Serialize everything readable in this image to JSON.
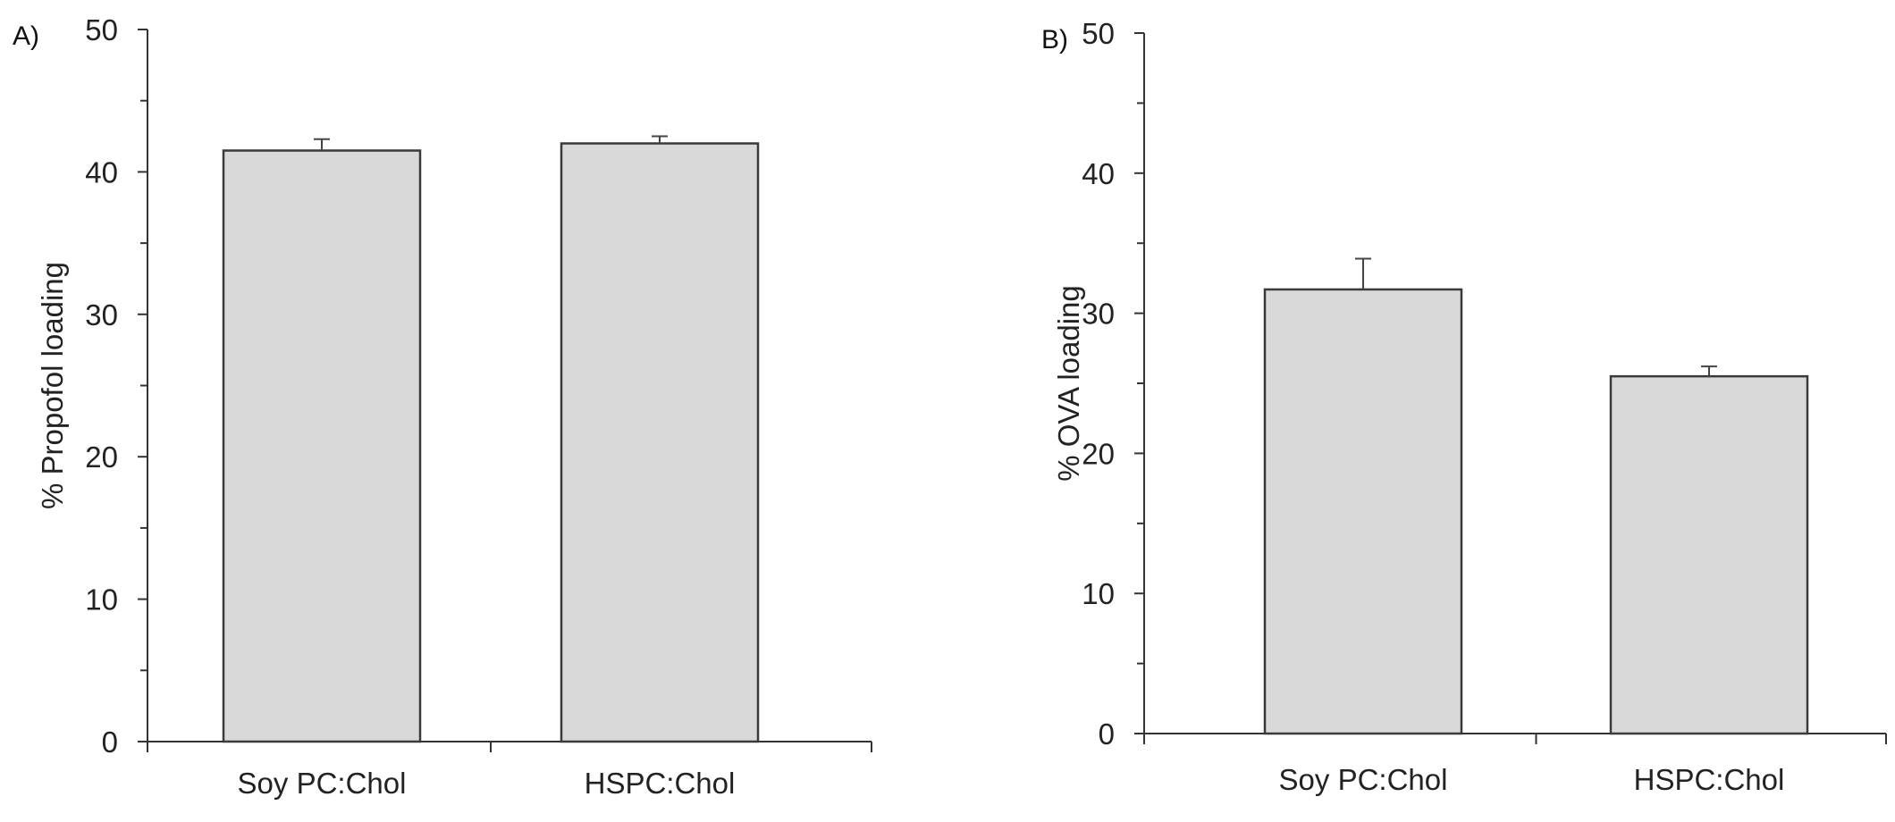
{
  "chart_data": [
    {
      "panel": "A)",
      "type": "bar",
      "categories": [
        "Soy PC:Chol",
        "HSPC:Chol"
      ],
      "values": [
        41.5,
        42.0
      ],
      "errors": [
        0.8,
        0.5
      ],
      "xlabel": "",
      "ylabel": "% Propofol loading",
      "ylim": [
        0,
        50
      ],
      "yticks": [
        0,
        10,
        20,
        30,
        40,
        50
      ],
      "bar_color": "#d9d9d9",
      "grid": false,
      "legend": "none"
    },
    {
      "panel": "B)",
      "type": "bar",
      "categories": [
        "Soy PC:Chol",
        "HSPC:Chol"
      ],
      "values": [
        31.7,
        25.5
      ],
      "errors": [
        2.2,
        0.7
      ],
      "xlabel": "",
      "ylabel": "% OVA loading",
      "ylim": [
        0,
        50
      ],
      "yticks": [
        0,
        10,
        20,
        30,
        40,
        50
      ],
      "bar_color": "#d9d9d9",
      "grid": false,
      "legend": "none"
    }
  ]
}
